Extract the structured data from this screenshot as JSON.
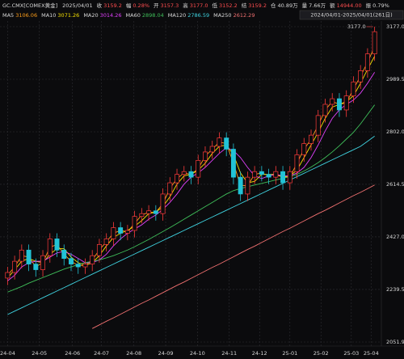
{
  "chart_data": {
    "type": "candlestick",
    "title": "GC.CMX[COMEX黄金]",
    "date": "2025/04/01",
    "info": [
      {
        "label": "收",
        "value": "3159.2",
        "color": "#ff4d4f"
      },
      {
        "label": "幅",
        "value": "0.28%",
        "color": "#ff4d4f"
      },
      {
        "label": "开",
        "value": "3157.3",
        "color": "#ff4d4f"
      },
      {
        "label": "高",
        "value": "3177.0",
        "color": "#ff4d4f"
      },
      {
        "label": "低",
        "value": "3152.2",
        "color": "#ff4d4f"
      },
      {
        "label": "结",
        "value": "3159.2",
        "color": "#ff4d4f"
      },
      {
        "label": "仓",
        "value": "40.89万",
        "color": "#d8d8d8"
      },
      {
        "label": "量",
        "value": "7.66万",
        "color": "#d8d8d8"
      },
      {
        "label": "额",
        "value": "14944.00",
        "color": "#ff4d4f"
      },
      {
        "label": "振",
        "value": "0.79%",
        "color": "#d8d8d8"
      }
    ],
    "range_label": "2024/04/01-2025/04/01(261日)",
    "high_label": "3177.0",
    "up_color": "#ff3b3b",
    "down_color": "#22c3d6",
    "xlim": [
      -0.5,
      52.5
    ],
    "xticks": [
      {
        "value": 0,
        "label": "24-04"
      },
      {
        "value": 4.5,
        "label": "24-05"
      },
      {
        "value": 9.2,
        "label": "24-06"
      },
      {
        "value": 13.3,
        "label": "24-07"
      },
      {
        "value": 17.9,
        "label": "24-08"
      },
      {
        "value": 22.4,
        "label": "24-09"
      },
      {
        "value": 26.9,
        "label": "24-10"
      },
      {
        "value": 31.4,
        "label": "24-11"
      },
      {
        "value": 35.7,
        "label": "24-12"
      },
      {
        "value": 40,
        "label": "25-01"
      },
      {
        "value": 44.4,
        "label": "25-02"
      },
      {
        "value": 48.7,
        "label": "25-03"
      },
      {
        "value": 51.5,
        "label": "25-04"
      }
    ],
    "ylim": [
      2051.9,
      3177
    ],
    "yticks": [
      {
        "value": 3177,
        "label": "3177.0"
      },
      2989.5,
      {
        "value": 2802,
        "label": "2802.0"
      },
      2614.5,
      {
        "value": 2427,
        "label": "2427.0"
      },
      2239.5,
      2051.9
    ],
    "grid": true,
    "open": [
      2280,
      2300,
      2340,
      2380,
      2330,
      2310,
      2360,
      2420,
      2380,
      2350,
      2330,
      2320,
      2330,
      2360,
      2400,
      2420,
      2460,
      2440,
      2450,
      2500,
      2510,
      2520,
      2510,
      2580,
      2620,
      2650,
      2660,
      2640,
      2700,
      2730,
      2750,
      2780,
      2740,
      2640,
      2580,
      2640,
      2660,
      2650,
      2640,
      2660,
      2620,
      2660,
      2720,
      2760,
      2790,
      2860,
      2900,
      2920,
      2880,
      2930,
      2980,
      3020,
      3080
    ],
    "high": [
      2320,
      2360,
      2400,
      2400,
      2350,
      2380,
      2440,
      2440,
      2400,
      2370,
      2350,
      2350,
      2380,
      2420,
      2440,
      2480,
      2480,
      2470,
      2520,
      2530,
      2540,
      2540,
      2600,
      2640,
      2670,
      2680,
      2680,
      2720,
      2750,
      2770,
      2800,
      2800,
      2760,
      2660,
      2660,
      2680,
      2680,
      2670,
      2680,
      2680,
      2680,
      2740,
      2780,
      2810,
      2880,
      2920,
      2940,
      2940,
      2950,
      3000,
      3040,
      3100,
      3177
    ],
    "low": [
      2255,
      2275,
      2315,
      2305,
      2285,
      2285,
      2335,
      2355,
      2325,
      2305,
      2295,
      2295,
      2305,
      2335,
      2375,
      2395,
      2415,
      2415,
      2425,
      2475,
      2485,
      2485,
      2485,
      2555,
      2595,
      2625,
      2615,
      2615,
      2675,
      2705,
      2725,
      2715,
      2615,
      2555,
      2555,
      2615,
      2625,
      2615,
      2615,
      2595,
      2595,
      2635,
      2695,
      2735,
      2765,
      2835,
      2875,
      2855,
      2855,
      2905,
      2955,
      2995,
      3055
    ],
    "close": [
      2300,
      2340,
      2380,
      2330,
      2310,
      2360,
      2420,
      2380,
      2350,
      2330,
      2320,
      2330,
      2360,
      2400,
      2420,
      2460,
      2440,
      2450,
      2500,
      2510,
      2520,
      2510,
      2580,
      2620,
      2650,
      2660,
      2640,
      2700,
      2730,
      2750,
      2780,
      2740,
      2640,
      2580,
      2640,
      2660,
      2650,
      2640,
      2660,
      2620,
      2660,
      2720,
      2760,
      2790,
      2860,
      2900,
      2920,
      2880,
      2930,
      2980,
      3020,
      3080,
      3159.2
    ],
    "series": [
      {
        "name": "MA5",
        "color": "#ff9f1a",
        "values": [
          2290,
          2320,
          2360,
          2355,
          2320,
          2335,
          2390,
          2400,
          2365,
          2340,
          2325,
          2325,
          2345,
          2380,
          2410,
          2440,
          2450,
          2445,
          2475,
          2505,
          2515,
          2515,
          2545,
          2600,
          2635,
          2655,
          2650,
          2670,
          2715,
          2740,
          2765,
          2760,
          2690,
          2610,
          2610,
          2650,
          2655,
          2645,
          2650,
          2640,
          2640,
          2690,
          2740,
          2775,
          2825,
          2880,
          2910,
          2900,
          2905,
          2955,
          3000,
          3050,
          3106.06
        ]
      },
      {
        "name": "MA10",
        "color": "#f5e000",
        "values": [
          2280,
          2310,
          2340,
          2350,
          2340,
          2335,
          2365,
          2385,
          2385,
          2355,
          2335,
          2325,
          2335,
          2360,
          2395,
          2425,
          2440,
          2450,
          2465,
          2485,
          2510,
          2515,
          2535,
          2570,
          2615,
          2645,
          2650,
          2665,
          2690,
          2725,
          2750,
          2755,
          2720,
          2655,
          2620,
          2625,
          2650,
          2650,
          2650,
          2640,
          2645,
          2665,
          2710,
          2755,
          2800,
          2850,
          2890,
          2900,
          2910,
          2930,
          2975,
          3025,
          3071.26
        ]
      },
      {
        "name": "MA20",
        "color": "#e040fb",
        "values": [
          2270,
          2290,
          2320,
          2335,
          2340,
          2340,
          2355,
          2370,
          2375,
          2365,
          2350,
          2335,
          2335,
          2345,
          2365,
          2395,
          2420,
          2440,
          2455,
          2470,
          2490,
          2505,
          2525,
          2550,
          2580,
          2615,
          2640,
          2655,
          2675,
          2700,
          2725,
          2745,
          2735,
          2710,
          2675,
          2645,
          2635,
          2645,
          2650,
          2645,
          2645,
          2655,
          2675,
          2710,
          2755,
          2805,
          2850,
          2880,
          2900,
          2915,
          2940,
          2975,
          3014.26
        ]
      },
      {
        "name": "MA60",
        "color": "#3fbf5a",
        "values": [
          2230,
          2240,
          2250,
          2262,
          2272,
          2282,
          2292,
          2302,
          2312,
          2320,
          2328,
          2335,
          2340,
          2345,
          2352,
          2360,
          2370,
          2380,
          2392,
          2405,
          2418,
          2432,
          2446,
          2460,
          2475,
          2490,
          2505,
          2520,
          2535,
          2550,
          2565,
          2580,
          2592,
          2600,
          2606,
          2612,
          2618,
          2624,
          2630,
          2636,
          2642,
          2650,
          2662,
          2676,
          2692,
          2710,
          2730,
          2752,
          2776,
          2800,
          2830,
          2864,
          2898.04
        ]
      },
      {
        "name": "MA120",
        "color": "#3fd3e0",
        "values": [
          2150,
          2162,
          2174,
          2186,
          2198,
          2210,
          2222,
          2234,
          2246,
          2258,
          2270,
          2282,
          2294,
          2306,
          2318,
          2330,
          2342,
          2354,
          2366,
          2378,
          2390,
          2402,
          2414,
          2426,
          2438,
          2450,
          2462,
          2474,
          2486,
          2498,
          2510,
          2522,
          2534,
          2546,
          2558,
          2570,
          2582,
          2594,
          2606,
          2618,
          2630,
          2642,
          2654,
          2666,
          2678,
          2690,
          2702,
          2714,
          2726,
          2738,
          2750,
          2768,
          2786.59
        ]
      },
      {
        "name": "MA250",
        "color": "#f07070",
        "values": [
          null,
          null,
          null,
          null,
          null,
          null,
          null,
          null,
          null,
          null,
          null,
          null,
          2100,
          2113,
          2126,
          2138,
          2151,
          2164,
          2177,
          2190,
          2202,
          2215,
          2228,
          2241,
          2254,
          2266,
          2279,
          2292,
          2305,
          2318,
          2330,
          2343,
          2356,
          2369,
          2382,
          2394,
          2407,
          2420,
          2433,
          2446,
          2458,
          2471,
          2484,
          2497,
          2510,
          2522,
          2535,
          2548,
          2561,
          2574,
          2586,
          2599,
          2612.29
        ]
      }
    ]
  }
}
